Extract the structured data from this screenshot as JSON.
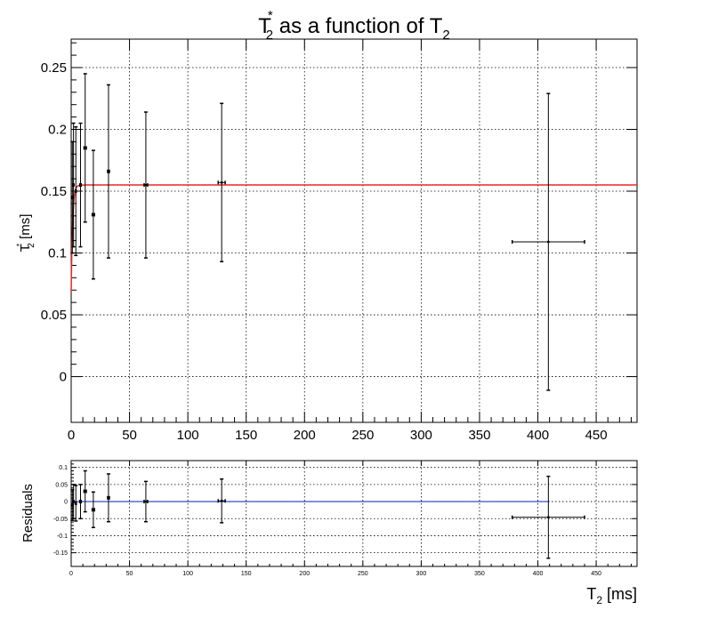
{
  "chart_data": [
    {
      "type": "scatter",
      "panel": "main",
      "title": {
        "base": "T",
        "sub": "2",
        "sup": "*",
        "rest": " as a function of T",
        "rest_sub": "2"
      },
      "ylabel": {
        "base": "T",
        "sub": "2",
        "sup": "*",
        "rest": " [ms]"
      },
      "xlim": [
        0,
        485
      ],
      "ylim": [
        -0.037,
        0.273
      ],
      "xticks": [
        0,
        50,
        100,
        150,
        200,
        250,
        300,
        350,
        400,
        450
      ],
      "yticks": [
        0,
        0.05,
        0.1,
        0.15,
        0.2,
        0.25
      ],
      "ytick_labels": [
        "0",
        "0.05",
        "0.1",
        "0.15",
        "0.2",
        "0.25"
      ],
      "grid": true,
      "series": [
        {
          "kind": "errorbars",
          "color": "#000000",
          "points": [
            {
              "x": 1,
              "y": 0.145,
              "xerr": 0.2,
              "yerr": 0.045
            },
            {
              "x": 2,
              "y": 0.155,
              "xerr": 0.3,
              "yerr": 0.05
            },
            {
              "x": 4,
              "y": 0.15,
              "xerr": 0.4,
              "yerr": 0.052
            },
            {
              "x": 8,
              "y": 0.155,
              "xerr": 0.6,
              "yerr": 0.05
            },
            {
              "x": 12,
              "y": 0.185,
              "xerr": 1,
              "yerr": 0.06
            },
            {
              "x": 19,
              "y": 0.131,
              "xerr": 1,
              "yerr": 0.052
            },
            {
              "x": 32,
              "y": 0.166,
              "xerr": 0.8,
              "yerr": 0.07
            },
            {
              "x": 64,
              "y": 0.155,
              "xerr": 1.5,
              "yerr": 0.059
            },
            {
              "x": 129,
              "y": 0.157,
              "xerr": 3,
              "yerr": 0.064
            },
            {
              "x": 409,
              "y": 0.109,
              "xerr": 31,
              "yerr": 0.12
            }
          ]
        },
        {
          "kind": "fit",
          "color": "#e8262a",
          "model": "plateau-exponential",
          "plateau": 0.155,
          "start": 0.068,
          "tau": 1.2
        }
      ]
    },
    {
      "type": "scatter",
      "panel": "residuals",
      "ylabel": "Residuals",
      "xlabel": {
        "base": "T",
        "sub": "2",
        "rest": " [ms]"
      },
      "xlim": [
        0,
        485
      ],
      "ylim": [
        -0.19,
        0.12
      ],
      "xticks": [
        0,
        50,
        100,
        150,
        200,
        250,
        300,
        350,
        400,
        450
      ],
      "yticks": [
        -0.15,
        -0.1,
        -0.05,
        0,
        0.05,
        0.1
      ],
      "ytick_labels": [
        "-0.15",
        "-0.1",
        "-0.05",
        "0",
        "0.05",
        "0.1"
      ],
      "grid": true,
      "series": [
        {
          "kind": "errorbars",
          "color": "#000000",
          "points": [
            {
              "x": 1,
              "y": -0.01,
              "xerr": 0.2,
              "yerr": 0.045
            },
            {
              "x": 2,
              "y": 0.0,
              "xerr": 0.3,
              "yerr": 0.05
            },
            {
              "x": 4,
              "y": -0.005,
              "xerr": 0.4,
              "yerr": 0.052
            },
            {
              "x": 8,
              "y": 0.0,
              "xerr": 0.6,
              "yerr": 0.05
            },
            {
              "x": 12,
              "y": 0.03,
              "xerr": 1,
              "yerr": 0.06
            },
            {
              "x": 19,
              "y": -0.024,
              "xerr": 1,
              "yerr": 0.052
            },
            {
              "x": 32,
              "y": 0.011,
              "xerr": 0.8,
              "yerr": 0.07
            },
            {
              "x": 64,
              "y": 0.0,
              "xerr": 1.5,
              "yerr": 0.059
            },
            {
              "x": 129,
              "y": 0.002,
              "xerr": 3,
              "yerr": 0.064
            },
            {
              "x": 409,
              "y": -0.046,
              "xerr": 31,
              "yerr": 0.12
            }
          ]
        },
        {
          "kind": "zero-line",
          "color": "#2233cc",
          "y": 0
        }
      ]
    }
  ]
}
